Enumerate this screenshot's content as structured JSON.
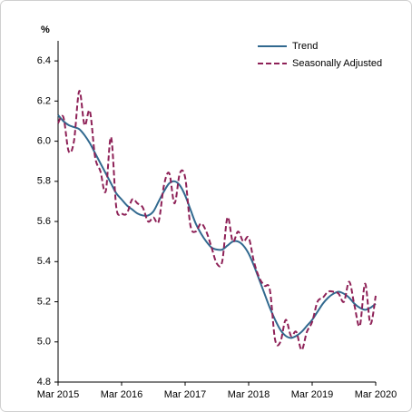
{
  "chart_data": {
    "type": "line",
    "y_label": "%",
    "categories": [
      "Mar 2015",
      null,
      null,
      null,
      null,
      null,
      null,
      null,
      null,
      null,
      null,
      null,
      "Mar 2016",
      null,
      null,
      null,
      null,
      null,
      null,
      null,
      null,
      null,
      null,
      null,
      "Mar 2017",
      null,
      null,
      null,
      null,
      null,
      null,
      null,
      null,
      null,
      null,
      null,
      "Mar 2018",
      null,
      null,
      null,
      null,
      null,
      null,
      null,
      null,
      null,
      null,
      null,
      "Mar 2019",
      null,
      null,
      null,
      null,
      null,
      null,
      null,
      null,
      null,
      null,
      null,
      "Mar 2020"
    ],
    "series": [
      {
        "name": "Trend",
        "color": "#31698f",
        "dashed": false,
        "values": [
          6.13,
          6.1,
          6.08,
          6.07,
          6.06,
          6.03,
          5.99,
          5.94,
          5.89,
          5.84,
          5.79,
          5.74,
          5.71,
          5.68,
          5.66,
          5.64,
          5.63,
          5.63,
          5.65,
          5.7,
          5.75,
          5.79,
          5.8,
          5.78,
          5.73,
          5.66,
          5.59,
          5.54,
          5.5,
          5.47,
          5.46,
          5.46,
          5.48,
          5.5,
          5.5,
          5.48,
          5.44,
          5.38,
          5.31,
          5.24,
          5.17,
          5.11,
          5.06,
          5.03,
          5.02,
          5.03,
          5.05,
          5.08,
          5.11,
          5.15,
          5.19,
          5.22,
          5.24,
          5.25,
          5.24,
          5.22,
          5.19,
          5.17,
          5.16,
          5.17,
          5.19
        ]
      },
      {
        "name": "Seasonally Adjusted",
        "color": "#8e2157",
        "dashed": true,
        "values": [
          6.09,
          6.12,
          5.95,
          6.0,
          6.25,
          6.08,
          6.15,
          5.92,
          5.85,
          5.75,
          6.02,
          5.67,
          5.64,
          5.64,
          5.71,
          5.69,
          5.67,
          5.6,
          5.62,
          5.6,
          5.78,
          5.84,
          5.69,
          5.84,
          5.82,
          5.58,
          5.55,
          5.59,
          5.55,
          5.47,
          5.39,
          5.4,
          5.62,
          5.5,
          5.55,
          5.5,
          5.52,
          5.4,
          5.32,
          5.28,
          5.26,
          5.01,
          5.0,
          5.11,
          5.03,
          5.05,
          4.96,
          5.05,
          5.1,
          5.2,
          5.22,
          5.25,
          5.25,
          5.24,
          5.2,
          5.3,
          5.18,
          5.08,
          5.29,
          5.09,
          5.23
        ]
      }
    ],
    "ylim": [
      4.8,
      6.5
    ],
    "yticks": [
      4.8,
      {
        "value": 5,
        "label": "5.0"
      },
      5.2,
      5.4,
      5.6,
      5.8,
      {
        "value": 6,
        "label": "6.0"
      },
      6.2,
      6.4
    ],
    "grid": false,
    "legend": "top-right"
  }
}
